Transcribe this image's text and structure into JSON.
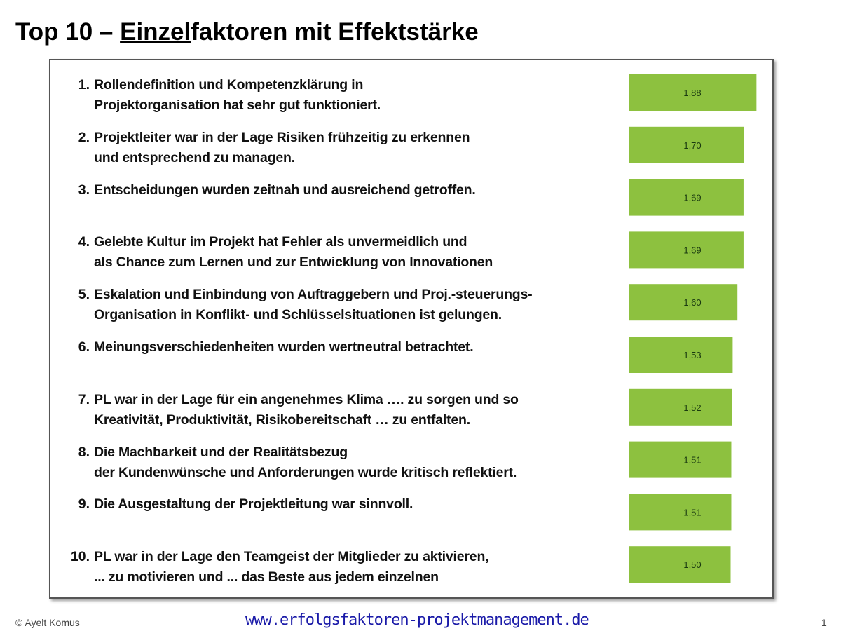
{
  "title": {
    "prefix": "Top 10 – ",
    "underlined": "Einzel",
    "suffix": "faktoren mit Effektstärke"
  },
  "chart_data": {
    "type": "bar",
    "orientation": "horizontal",
    "categories": [
      {
        "num": "1.",
        "lines": [
          "Rollendefinition und Kompetenzklärung in",
          "Projektorganisation hat sehr gut funktioniert."
        ]
      },
      {
        "num": "2.",
        "lines": [
          "Projektleiter war in der Lage Risiken frühzeitig zu erkennen",
          "und entsprechend zu managen."
        ]
      },
      {
        "num": "3.",
        "lines": [
          "Entscheidungen wurden zeitnah und ausreichend getroffen."
        ]
      },
      {
        "num": "4.",
        "lines": [
          "Gelebte Kultur im Projekt hat Fehler als unvermeidlich und",
          "als Chance zum Lernen und zur Entwicklung von Innovationen"
        ]
      },
      {
        "num": "5.",
        "lines": [
          "Eskalation und Einbindung von Auftraggebern und Proj.-steuerungs-",
          "Organisation in Konflikt- und Schlüsselsituationen ist gelungen."
        ]
      },
      {
        "num": "6.",
        "lines": [
          "Meinungsverschiedenheiten wurden wertneutral betrachtet."
        ]
      },
      {
        "num": "7.",
        "lines": [
          "PL war in der Lage für ein angenehmes Klima …. zu sorgen und so",
          "Kreativität, Produktivität, Risikobereitschaft … zu entfalten."
        ]
      },
      {
        "num": "8.",
        "lines": [
          "Die Machbarkeit und der Realitätsbezug",
          "der Kundenwünsche und Anforderungen wurde kritisch reflektiert."
        ]
      },
      {
        "num": "9.",
        "lines": [
          "Die Ausgestaltung der Projektleitung war sinnvoll."
        ]
      },
      {
        "num": "10.",
        "lines": [
          "PL war in der Lage den Teamgeist der Mitglieder zu aktivieren,",
          "... zu motivieren und ... das Beste aus jedem einzelnen"
        ]
      }
    ],
    "values": [
      1.88,
      1.7,
      1.69,
      1.69,
      1.6,
      1.53,
      1.52,
      1.51,
      1.51,
      1.5
    ],
    "labels": [
      "1,88",
      "1,70",
      "1,69",
      "1,69",
      "1,60",
      "1,53",
      "1,52",
      "1,51",
      "1,51",
      "1,50"
    ],
    "xlim": [
      0,
      2
    ],
    "bar_color": "#8dc13f",
    "grid": false,
    "legend": "none"
  },
  "footer": {
    "copyright": "© Ayelt Komus",
    "url": "www.erfolgsfaktoren-projektmanagement.de",
    "page": "1"
  }
}
